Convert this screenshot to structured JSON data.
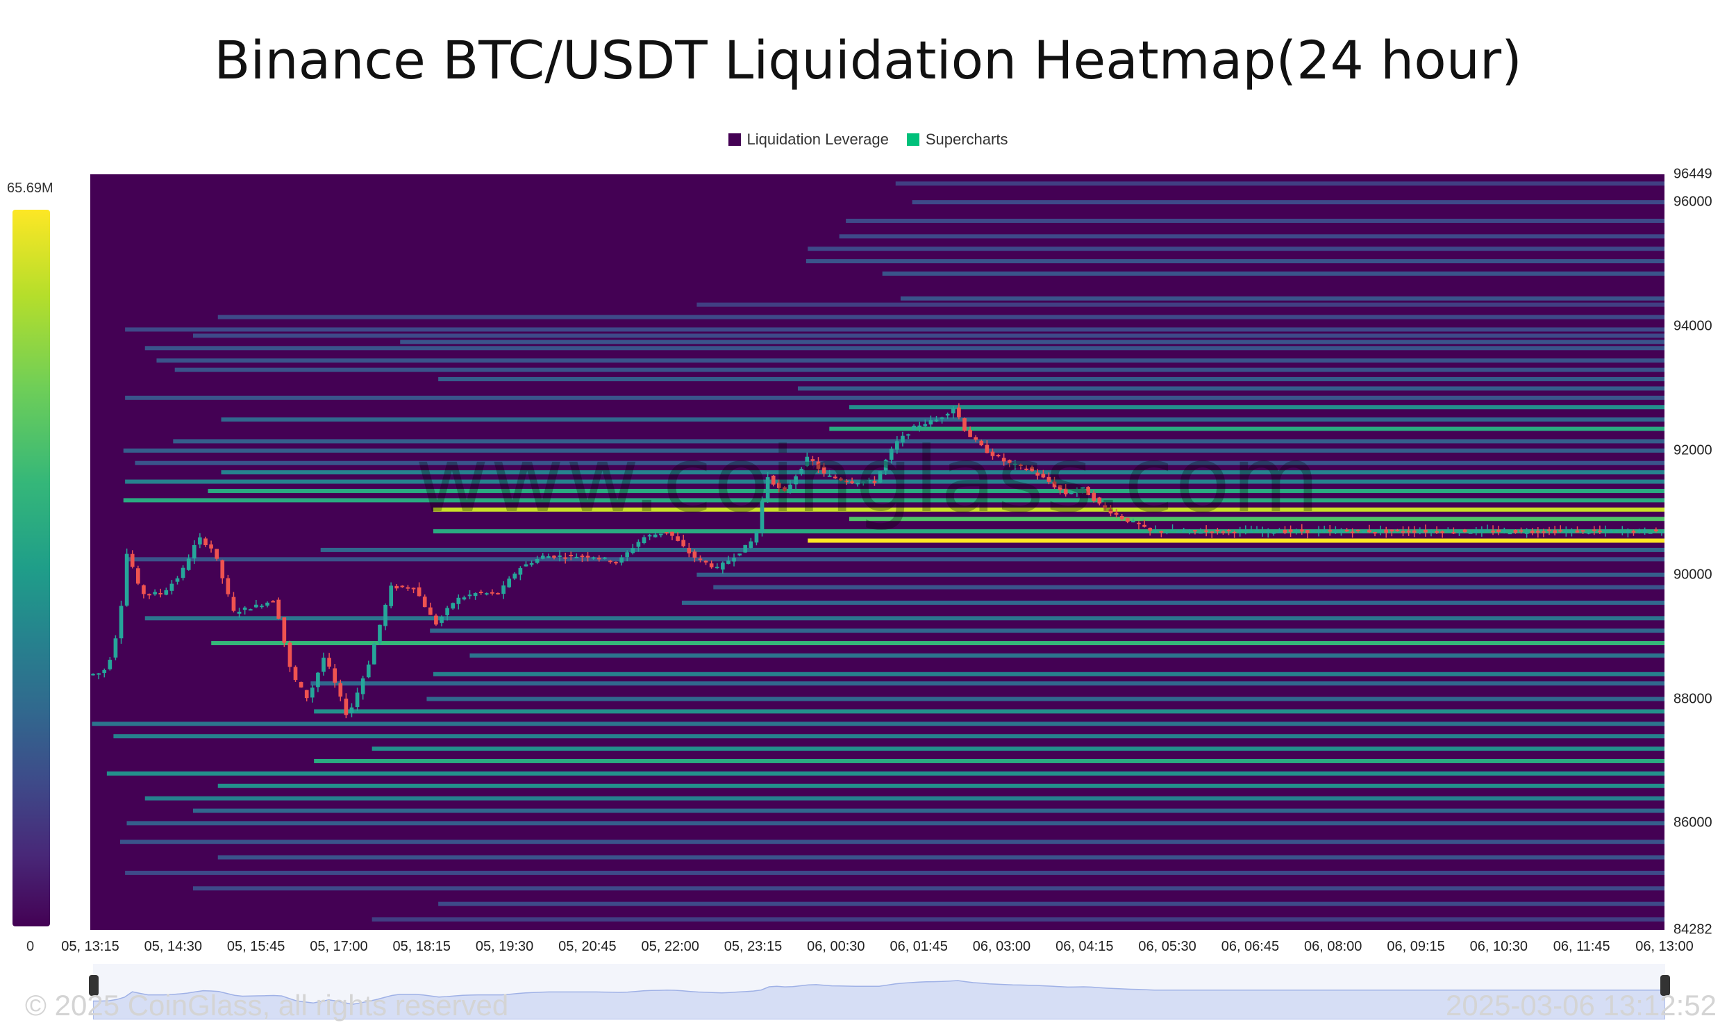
{
  "title": "Binance BTC/USDT Liquidation Heatmap(24 hour)",
  "legend": [
    {
      "label": "Liquidation Leverage",
      "color": "#440154"
    },
    {
      "label": "Supercharts",
      "color": "#00c07a"
    }
  ],
  "color_scale": {
    "max_label": "65.69M",
    "min_label": "0"
  },
  "watermark": "www.coinglass.com",
  "footer": {
    "copyright": "© 2025 CoinGlass, all rights reserved",
    "timestamp": "2025-03-06 13:12:52"
  },
  "chart_data": {
    "type": "heatmap",
    "title": "Binance BTC/USDT Liquidation Heatmap(24 hour)",
    "ylim": [
      84282,
      96449
    ],
    "y_ticks": [
      96449,
      96000,
      94000,
      92000,
      90000,
      88000,
      86000,
      84282
    ],
    "x_ticks": [
      "05, 13:15",
      "05, 14:30",
      "05, 15:45",
      "05, 17:00",
      "05, 18:15",
      "05, 19:30",
      "05, 20:45",
      "05, 22:00",
      "05, 23:15",
      "06, 00:30",
      "06, 01:45",
      "06, 03:00",
      "06, 04:15",
      "06, 05:30",
      "06, 06:45",
      "06, 08:00",
      "06, 09:15",
      "06, 10:30",
      "06, 11:45",
      "06, 13:00"
    ],
    "value_range": [
      0,
      65.69
    ],
    "value_unit": "M",
    "background_color": "#440154",
    "up_color": "#26a69a",
    "down_color": "#ef5350",
    "price_series": [
      {
        "t": 0.0,
        "p": 88400
      },
      {
        "t": 0.6,
        "p": 88400
      },
      {
        "t": 1.2,
        "p": 88500
      },
      {
        "t": 1.9,
        "p": 89200
      },
      {
        "t": 2.4,
        "p": 90400
      },
      {
        "t": 3.2,
        "p": 89700
      },
      {
        "t": 4.5,
        "p": 89700
      },
      {
        "t": 5.6,
        "p": 90000
      },
      {
        "t": 6.7,
        "p": 90600
      },
      {
        "t": 7.6,
        "p": 90400
      },
      {
        "t": 8.8,
        "p": 89400
      },
      {
        "t": 10.2,
        "p": 89500
      },
      {
        "t": 11.3,
        "p": 89600
      },
      {
        "t": 12.3,
        "p": 88400
      },
      {
        "t": 13.3,
        "p": 88000
      },
      {
        "t": 14.3,
        "p": 88700
      },
      {
        "t": 15.7,
        "p": 87700
      },
      {
        "t": 17.0,
        "p": 88600
      },
      {
        "t": 18.3,
        "p": 89800
      },
      {
        "t": 19.7,
        "p": 89800
      },
      {
        "t": 21.0,
        "p": 89200
      },
      {
        "t": 22.2,
        "p": 89600
      },
      {
        "t": 23.4,
        "p": 89700
      },
      {
        "t": 24.8,
        "p": 89700
      },
      {
        "t": 26.0,
        "p": 90100
      },
      {
        "t": 27.5,
        "p": 90300
      },
      {
        "t": 29.0,
        "p": 90300
      },
      {
        "t": 30.5,
        "p": 90300
      },
      {
        "t": 32.0,
        "p": 90200
      },
      {
        "t": 33.5,
        "p": 90600
      },
      {
        "t": 35.0,
        "p": 90700
      },
      {
        "t": 36.5,
        "p": 90300
      },
      {
        "t": 38.0,
        "p": 90100
      },
      {
        "t": 39.5,
        "p": 90400
      },
      {
        "t": 40.3,
        "p": 90600
      },
      {
        "t": 41.0,
        "p": 91600
      },
      {
        "t": 42.0,
        "p": 91300
      },
      {
        "t": 43.5,
        "p": 91900
      },
      {
        "t": 44.5,
        "p": 91600
      },
      {
        "t": 46.0,
        "p": 91500
      },
      {
        "t": 47.5,
        "p": 91500
      },
      {
        "t": 48.7,
        "p": 92100
      },
      {
        "t": 50.0,
        "p": 92400
      },
      {
        "t": 51.3,
        "p": 92500
      },
      {
        "t": 52.3,
        "p": 92700
      },
      {
        "t": 53.0,
        "p": 92300
      },
      {
        "t": 54.2,
        "p": 92000
      },
      {
        "t": 55.5,
        "p": 91800
      },
      {
        "t": 56.8,
        "p": 91700
      },
      {
        "t": 58.0,
        "p": 91500
      },
      {
        "t": 59.0,
        "p": 91300
      },
      {
        "t": 60.0,
        "p": 91400
      },
      {
        "t": 61.2,
        "p": 91100
      },
      {
        "t": 62.5,
        "p": 90900
      },
      {
        "t": 63.5,
        "p": 90800
      },
      {
        "t": 64.0,
        "p": 90700
      }
    ],
    "liquidation_bands": [
      {
        "price": 96300,
        "from": 48.6,
        "intensity": 0.25
      },
      {
        "price": 96000,
        "from": 49.6,
        "intensity": 0.3
      },
      {
        "price": 95700,
        "from": 45.6,
        "intensity": 0.3
      },
      {
        "price": 95450,
        "from": 45.2,
        "intensity": 0.3
      },
      {
        "price": 95250,
        "from": 43.3,
        "intensity": 0.3
      },
      {
        "price": 95050,
        "from": 43.2,
        "intensity": 0.35
      },
      {
        "price": 94850,
        "from": 47.8,
        "intensity": 0.35
      },
      {
        "price": 94450,
        "from": 48.9,
        "intensity": 0.35
      },
      {
        "price": 94350,
        "from": 36.6,
        "intensity": 0.25
      },
      {
        "price": 94150,
        "from": 7.7,
        "intensity": 0.3
      },
      {
        "price": 93950,
        "from": 2.1,
        "intensity": 0.3
      },
      {
        "price": 93850,
        "from": 6.2,
        "intensity": 0.3
      },
      {
        "price": 93750,
        "from": 18.7,
        "intensity": 0.35
      },
      {
        "price": 93650,
        "from": 3.3,
        "intensity": 0.35
      },
      {
        "price": 93450,
        "from": 4.0,
        "intensity": 0.35
      },
      {
        "price": 93300,
        "from": 5.1,
        "intensity": 0.35
      },
      {
        "price": 93150,
        "from": 21.0,
        "intensity": 0.4
      },
      {
        "price": 93000,
        "from": 42.7,
        "intensity": 0.4
      },
      {
        "price": 92850,
        "from": 2.1,
        "intensity": 0.35
      },
      {
        "price": 92700,
        "from": 45.8,
        "intensity": 0.6
      },
      {
        "price": 92500,
        "from": 7.9,
        "intensity": 0.45
      },
      {
        "price": 92350,
        "from": 44.6,
        "intensity": 0.7
      },
      {
        "price": 92150,
        "from": 5.0,
        "intensity": 0.4
      },
      {
        "price": 92000,
        "from": 2.0,
        "intensity": 0.4
      },
      {
        "price": 91800,
        "from": 2.7,
        "intensity": 0.35
      },
      {
        "price": 91650,
        "from": 7.9,
        "intensity": 0.55
      },
      {
        "price": 91500,
        "from": 2.1,
        "intensity": 0.55
      },
      {
        "price": 91350,
        "from": 7.1,
        "intensity": 0.7
      },
      {
        "price": 91200,
        "from": 2.0,
        "intensity": 0.7
      },
      {
        "price": 91050,
        "from": 20.7,
        "intensity": 0.95
      },
      {
        "price": 90900,
        "from": 45.8,
        "intensity": 0.8
      },
      {
        "price": 90700,
        "from": 20.7,
        "intensity": 0.7
      },
      {
        "price": 90550,
        "from": 43.3,
        "intensity": 1.0
      },
      {
        "price": 90400,
        "from": 13.9,
        "intensity": 0.45
      },
      {
        "price": 90250,
        "from": 2.2,
        "intensity": 0.35
      },
      {
        "price": 90000,
        "from": 36.6,
        "intensity": 0.4
      },
      {
        "price": 89800,
        "from": 37.6,
        "intensity": 0.35
      },
      {
        "price": 89550,
        "from": 35.7,
        "intensity": 0.45
      },
      {
        "price": 89300,
        "from": 3.3,
        "intensity": 0.5
      },
      {
        "price": 89100,
        "from": 20.5,
        "intensity": 0.45
      },
      {
        "price": 88900,
        "from": 7.3,
        "intensity": 0.75
      },
      {
        "price": 88700,
        "from": 22.9,
        "intensity": 0.5
      },
      {
        "price": 88400,
        "from": 20.7,
        "intensity": 0.55
      },
      {
        "price": 88250,
        "from": 13.3,
        "intensity": 0.45
      },
      {
        "price": 88000,
        "from": 20.3,
        "intensity": 0.45
      },
      {
        "price": 87800,
        "from": 13.5,
        "intensity": 0.6
      },
      {
        "price": 87600,
        "from": 0.1,
        "intensity": 0.5
      },
      {
        "price": 87400,
        "from": 1.4,
        "intensity": 0.55
      },
      {
        "price": 87200,
        "from": 17.0,
        "intensity": 0.6
      },
      {
        "price": 87000,
        "from": 13.5,
        "intensity": 0.7
      },
      {
        "price": 86800,
        "from": 1.0,
        "intensity": 0.6
      },
      {
        "price": 86600,
        "from": 7.7,
        "intensity": 0.6
      },
      {
        "price": 86400,
        "from": 3.3,
        "intensity": 0.55
      },
      {
        "price": 86200,
        "from": 6.2,
        "intensity": 0.45
      },
      {
        "price": 86000,
        "from": 2.2,
        "intensity": 0.4
      },
      {
        "price": 85700,
        "from": 1.8,
        "intensity": 0.35
      },
      {
        "price": 85450,
        "from": 7.7,
        "intensity": 0.35
      },
      {
        "price": 85200,
        "from": 2.1,
        "intensity": 0.3
      },
      {
        "price": 84950,
        "from": 6.2,
        "intensity": 0.3
      },
      {
        "price": 84700,
        "from": 21.0,
        "intensity": 0.3
      },
      {
        "price": 84450,
        "from": 17.0,
        "intensity": 0.25
      }
    ]
  }
}
